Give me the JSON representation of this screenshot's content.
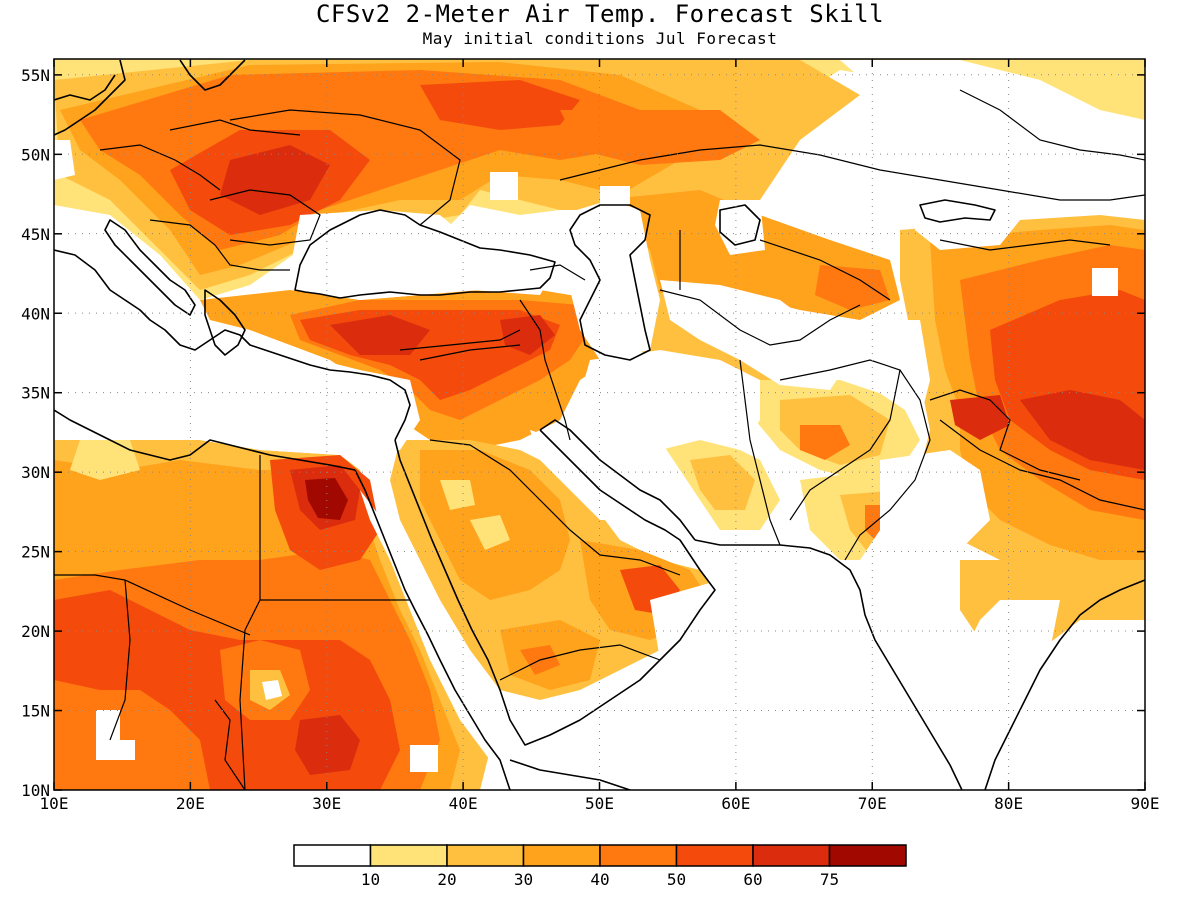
{
  "title": "CFSv2 2-Meter Air Temp. Forecast Skill",
  "subtitle": "May initial conditions   Jul Forecast",
  "map": {
    "lon_range": [
      10,
      90
    ],
    "lat_range": [
      10,
      56
    ],
    "lon_ticks": [
      {
        "value": 10,
        "label": "10E"
      },
      {
        "value": 20,
        "label": "20E"
      },
      {
        "value": 30,
        "label": "30E"
      },
      {
        "value": 40,
        "label": "40E"
      },
      {
        "value": 50,
        "label": "50E"
      },
      {
        "value": 60,
        "label": "60E"
      },
      {
        "value": 70,
        "label": "70E"
      },
      {
        "value": 80,
        "label": "80E"
      },
      {
        "value": 90,
        "label": "90E"
      }
    ],
    "lat_ticks": [
      {
        "value": 10,
        "label": "10N"
      },
      {
        "value": 15,
        "label": "15N"
      },
      {
        "value": 20,
        "label": "20N"
      },
      {
        "value": 25,
        "label": "25N"
      },
      {
        "value": 30,
        "label": "30N"
      },
      {
        "value": 35,
        "label": "35N"
      },
      {
        "value": 40,
        "label": "40N"
      },
      {
        "value": 45,
        "label": "45N"
      },
      {
        "value": 50,
        "label": "50N"
      },
      {
        "value": 55,
        "label": "55N"
      }
    ],
    "gridlines": "dotted"
  },
  "legend": {
    "boundaries": [
      "10",
      "20",
      "30",
      "40",
      "50",
      "60",
      "75"
    ],
    "colors": [
      "#ffffff",
      "#ffe278",
      "#ffc040",
      "#ffa21c",
      "#ff7810",
      "#f44a0c",
      "#dc2c0e",
      "#a00800"
    ]
  },
  "colors": {
    "c10": "#ffe278",
    "c20": "#ffc040",
    "c30": "#ffa21c",
    "c40": "#ff7810",
    "c50": "#f44a0c",
    "c60": "#dc2c0e",
    "c75": "#a00800"
  }
}
